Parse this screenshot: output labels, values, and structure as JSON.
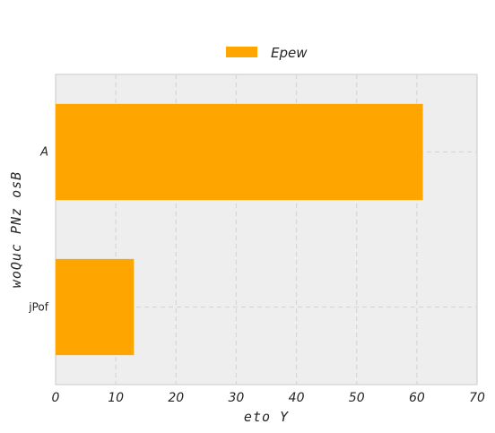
{
  "chart_data": {
    "type": "bar",
    "orientation": "horizontal",
    "categories": [
      "A",
      "jPof"
    ],
    "series": [
      {
        "name": "Epew",
        "values": [
          61,
          13
        ],
        "color": "#ffa500"
      }
    ],
    "xlabel": "eto Y",
    "ylabel": "woQuc PNz osB",
    "xlim": [
      0,
      70
    ],
    "xticks": [
      "0",
      "10",
      "20",
      "30",
      "40",
      "50",
      "60",
      "70"
    ],
    "grid": true,
    "legend_position": "top-center",
    "background": "#eeeeee"
  }
}
